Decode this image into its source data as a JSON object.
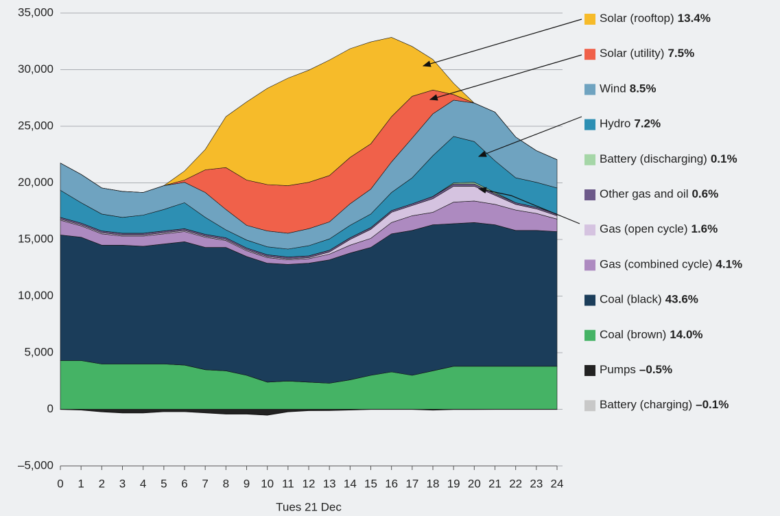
{
  "chart_data": {
    "type": "stacked_area",
    "x_label": "Tues 21 Dec",
    "x": [
      0,
      1,
      2,
      3,
      4,
      5,
      6,
      7,
      8,
      9,
      10,
      11,
      12,
      13,
      14,
      15,
      16,
      17,
      18,
      19,
      20,
      21,
      22,
      23,
      24
    ],
    "xlim": [
      0,
      24
    ],
    "ylim": [
      -5000,
      35000
    ],
    "yticks": [
      {
        "value": 35000,
        "label": "35,000"
      },
      {
        "value": 30000,
        "label": "30,000"
      },
      {
        "value": 25000,
        "label": "25,000"
      },
      {
        "value": 20000,
        "label": "20,000"
      },
      {
        "value": 15000,
        "label": "15,000"
      },
      {
        "value": 10000,
        "label": "10,000"
      },
      {
        "value": 5000,
        "label": "5,000"
      },
      0,
      {
        "value": -5000,
        "label": "–5,000"
      }
    ],
    "grid": true,
    "series": [
      {
        "name": "Solar (rooftop)",
        "share": "13.4%",
        "color": "#f6bb2a",
        "values": [
          0,
          0,
          0,
          0,
          0,
          0,
          800,
          1800,
          4500,
          6900,
          8500,
          9500,
          9900,
          10200,
          9600,
          9000,
          7000,
          4400,
          2700,
          1000,
          0,
          0,
          0,
          0,
          0
        ]
      },
      {
        "name": "Solar (utility)",
        "share": "7.5%",
        "color": "#f0614a",
        "values": [
          0,
          0,
          0,
          0,
          0,
          0,
          200,
          2000,
          3700,
          4000,
          4100,
          4200,
          4100,
          4100,
          4100,
          4000,
          4000,
          3700,
          2100,
          500,
          0,
          0,
          0,
          0,
          0
        ]
      },
      {
        "name": "Wind",
        "share": "8.5%",
        "color": "#6fa3c0",
        "values": [
          2400,
          2500,
          2300,
          2300,
          2000,
          2100,
          1800,
          2200,
          1800,
          1300,
          1400,
          1400,
          1500,
          1500,
          1900,
          2200,
          2700,
          3500,
          3700,
          3200,
          3400,
          4300,
          3600,
          2800,
          2500
        ]
      },
      {
        "name": "Hydro",
        "share": "7.2%",
        "color": "#2d8fb3",
        "values": [
          2400,
          1800,
          1500,
          1400,
          1600,
          1900,
          2300,
          1500,
          700,
          700,
          700,
          700,
          900,
          1000,
          1100,
          1200,
          1600,
          2300,
          3600,
          4100,
          3600,
          2800,
          2200,
          2200,
          2300
        ]
      },
      {
        "name": "Battery (discharging)",
        "share": "0.1%",
        "color": "#a5d6a7",
        "values": [
          0,
          0,
          0,
          0,
          0,
          0,
          0,
          0,
          0,
          0,
          0,
          0,
          0,
          0,
          0,
          0,
          0,
          0,
          0,
          100,
          150,
          100,
          0,
          0,
          0
        ]
      },
      {
        "name": "Other gas and oil",
        "share": "0.6%",
        "color": "#6d5a8a",
        "values": [
          150,
          150,
          150,
          150,
          150,
          150,
          150,
          150,
          150,
          150,
          150,
          150,
          150,
          150,
          150,
          150,
          150,
          150,
          200,
          200,
          200,
          150,
          150,
          150,
          150
        ]
      },
      {
        "name": "Gas (open cycle)",
        "share": "1.6%",
        "color": "#d5c3e0",
        "values": [
          100,
          100,
          100,
          100,
          100,
          100,
          100,
          100,
          100,
          100,
          100,
          100,
          100,
          200,
          500,
          800,
          900,
          900,
          1200,
          1400,
          1300,
          800,
          500,
          400,
          300
        ]
      },
      {
        "name": "Gas (combined cycle)",
        "share": "4.1%",
        "color": "#ad8ac0",
        "values": [
          1300,
          1000,
          1000,
          800,
          900,
          900,
          900,
          900,
          600,
          500,
          500,
          400,
          400,
          500,
          700,
          800,
          1000,
          1300,
          1100,
          1900,
          1900,
          1800,
          1800,
          1500,
          1100
        ]
      },
      {
        "name": "Coal (black)",
        "share": "43.6%",
        "color": "#1b3d5a",
        "values": [
          11100,
          10900,
          10500,
          10500,
          10400,
          10600,
          10900,
          10800,
          10900,
          10500,
          10500,
          10300,
          10500,
          10900,
          11200,
          11300,
          12200,
          12800,
          12900,
          12600,
          12700,
          12500,
          12000,
          12000,
          11900
        ]
      },
      {
        "name": "Coal (brown)",
        "share": "14.0%",
        "color": "#45b365",
        "values": [
          4300,
          4300,
          4000,
          4000,
          4000,
          4000,
          3900,
          3500,
          3400,
          3000,
          2400,
          2500,
          2400,
          2300,
          2600,
          3000,
          3300,
          3000,
          3400,
          3800,
          3800,
          3800,
          3800,
          3800,
          3800
        ]
      },
      {
        "name": "Pumps",
        "share": "–0.5%",
        "color": "#222222",
        "values": [
          0,
          -50,
          -200,
          -300,
          -300,
          -200,
          -200,
          -300,
          -400,
          -400,
          -500,
          -200,
          -100,
          -100,
          -50,
          0,
          0,
          0,
          -50,
          0,
          0,
          0,
          0,
          0,
          0
        ]
      },
      {
        "name": "Battery (charging)",
        "share": "–0.1%",
        "color": "#c8c8c8",
        "values": [
          -20,
          -20,
          -30,
          -30,
          -30,
          -20,
          -20,
          -20,
          -30,
          -30,
          -30,
          -30,
          -30,
          -20,
          -20,
          -20,
          -20,
          -20,
          -30,
          -30,
          -30,
          -20,
          -20,
          -20,
          -20
        ]
      }
    ]
  }
}
